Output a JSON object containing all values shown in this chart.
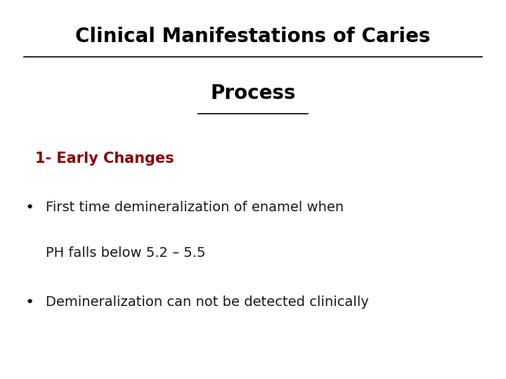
{
  "title_line1": "Clinical Manifestations of Caries",
  "title_line2": "Process",
  "title_color": "#000000",
  "title_fontsize": 20,
  "subtitle": "1- Early Changes",
  "subtitle_color": "#8B0000",
  "subtitle_fontsize": 15,
  "bullet1_line1": "First time demineralization of enamel when",
  "bullet1_line2": "PH falls below 5.2 – 5.5",
  "bullet2": "Demineralization can not be detected clinically",
  "bullet_color": "#1a1a1a",
  "bullet_fontsize": 14,
  "background_color": "#ffffff"
}
